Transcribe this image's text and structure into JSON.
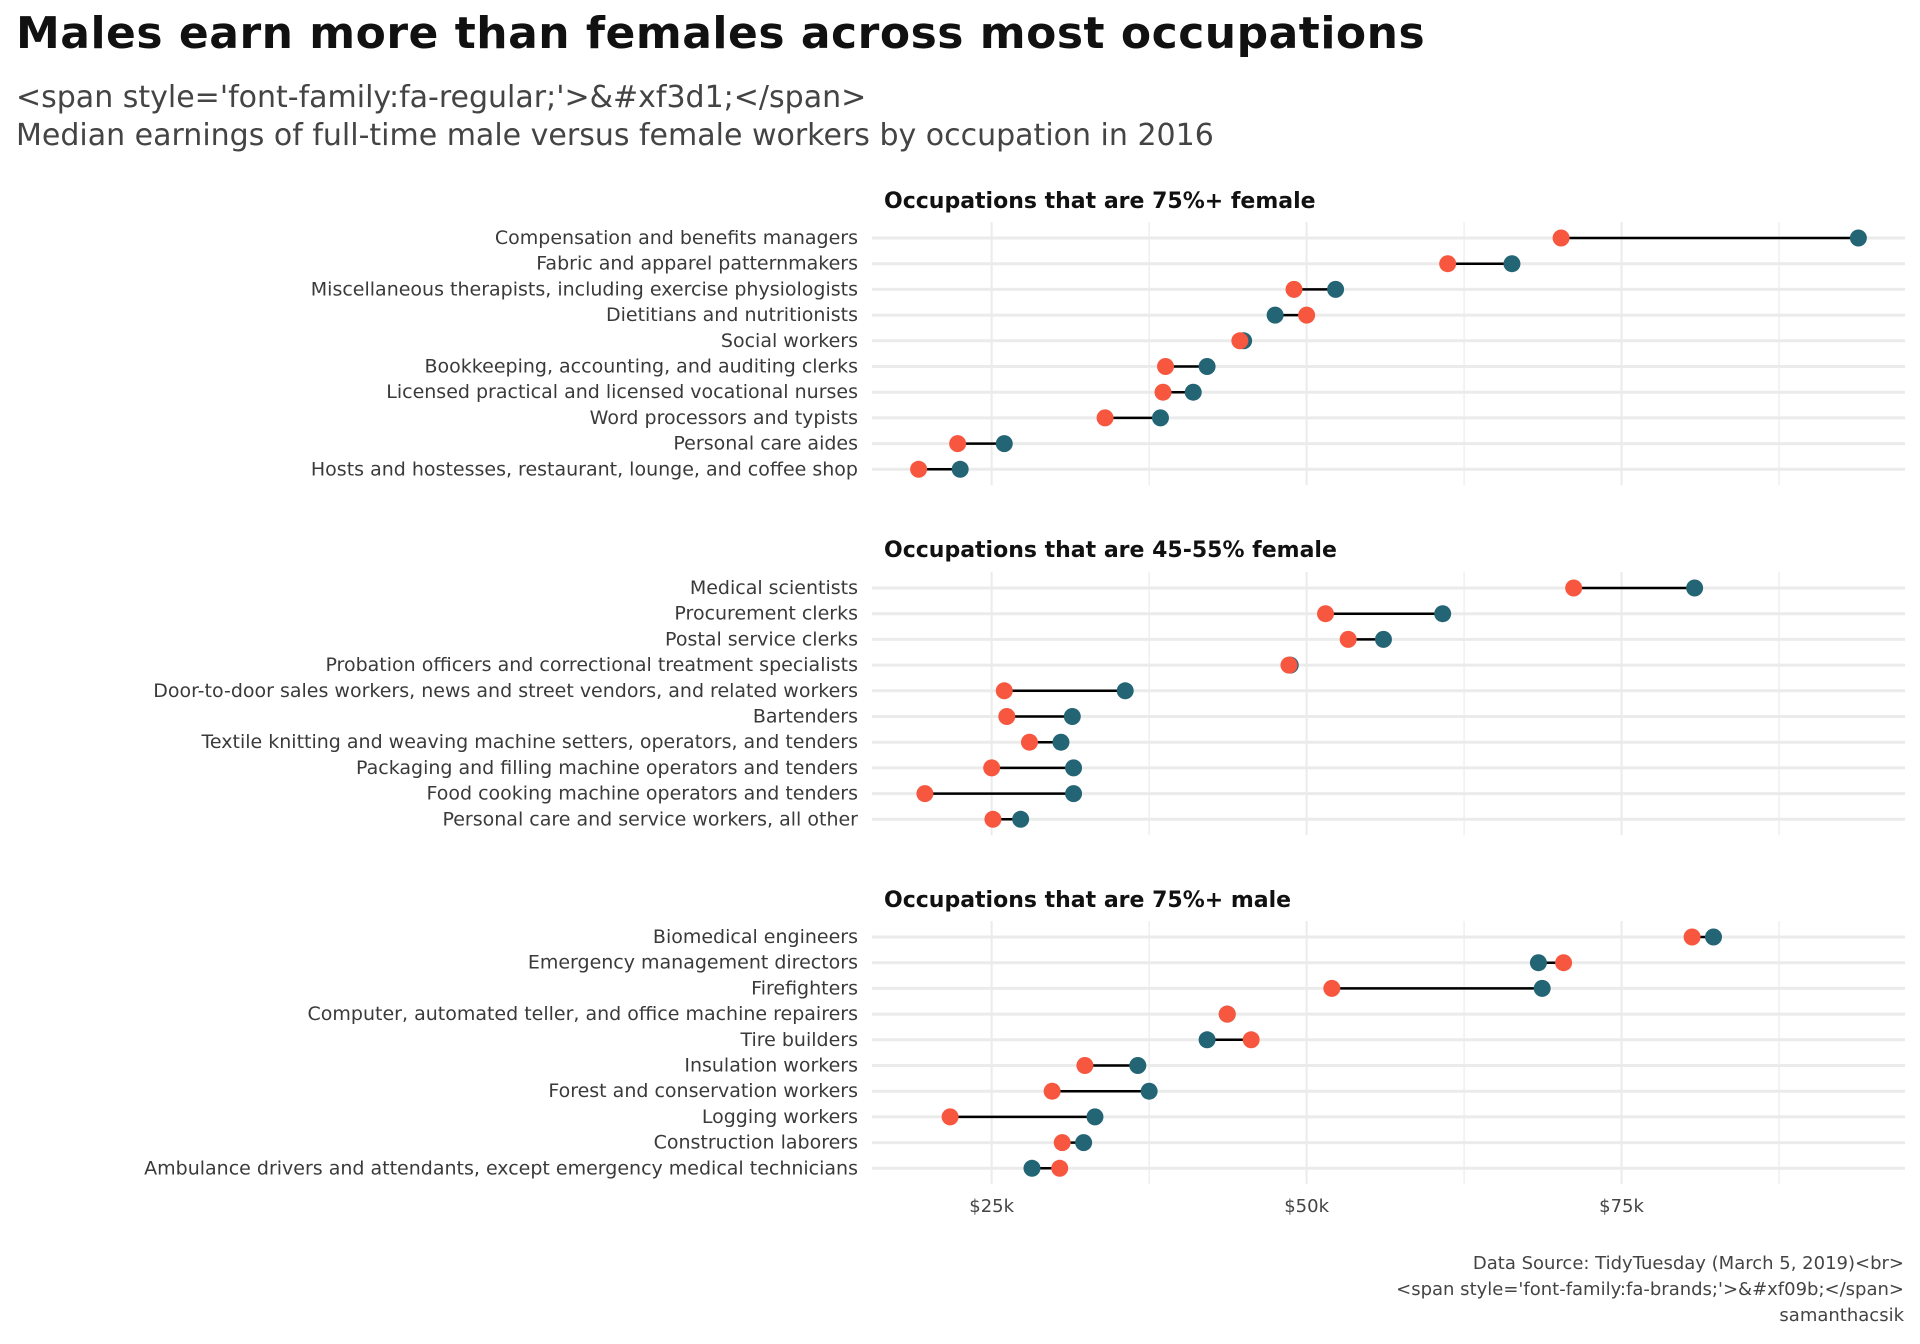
{
  "title": "Males earn more than females across most occupations",
  "subtitle_line1": "<span style='font-family:fa-regular;'>&#xf3d1;</span>",
  "subtitle_line2": "Median earnings of full-time male versus female workers by occupation in 2016",
  "caption": {
    "line1": "Data Source: TidyTuesday (March 5, 2019)<br>",
    "line2": "<span style='font-family:fa-brands;'>&#xf09b;</span>",
    "line3": "samanthacsik"
  },
  "colors": {
    "female": "#F8573F",
    "male": "#246575",
    "segment": "#000000",
    "grid": "#EBEBEB"
  },
  "chart_data": {
    "type": "dumbbell",
    "title": "Males earn more than females across most occupations",
    "xlabel": "",
    "ylabel": "",
    "x_ticks": [
      {
        "value": 25000,
        "label": "$25k"
      },
      {
        "value": 50000,
        "label": "$50k"
      },
      {
        "value": 75000,
        "label": "$75k"
      }
    ],
    "x_minor_ticks": [
      37500,
      62500,
      87500
    ],
    "xlim": [
      15500,
      97500
    ],
    "grid": true,
    "legend": "none",
    "series_names": [
      "female",
      "male"
    ],
    "facets": [
      {
        "title": "Occupations that are 75%+ female",
        "rows": [
          {
            "occupation": "Compensation and benefits managers",
            "female": 70200,
            "male": 93800
          },
          {
            "occupation": "Fabric and apparel patternmakers",
            "female": 61200,
            "male": 66300
          },
          {
            "occupation": "Miscellaneous therapists, including exercise physiologists",
            "female": 49000,
            "male": 52300
          },
          {
            "occupation": "Dietitians and nutritionists",
            "female": 50000,
            "male": 47500
          },
          {
            "occupation": "Social workers",
            "female": 44700,
            "male": 45000
          },
          {
            "occupation": "Bookkeeping, accounting, and auditing clerks",
            "female": 38800,
            "male": 42100
          },
          {
            "occupation": "Licensed practical and licensed vocational nurses",
            "female": 38600,
            "male": 41000
          },
          {
            "occupation": "Word processors and typists",
            "female": 34000,
            "male": 38400
          },
          {
            "occupation": "Personal care aides",
            "female": 22300,
            "male": 26000
          },
          {
            "occupation": "Hosts and hostesses, restaurant, lounge, and coffee shop",
            "female": 19200,
            "male": 22500
          }
        ]
      },
      {
        "title": "Occupations that are 45-55% female",
        "rows": [
          {
            "occupation": "Medical scientists",
            "female": 71200,
            "male": 80800
          },
          {
            "occupation": "Procurement clerks",
            "female": 51500,
            "male": 60800
          },
          {
            "occupation": "Postal service clerks",
            "female": 53300,
            "male": 56100
          },
          {
            "occupation": "Probation officers and correctional treatment specialists",
            "female": 48600,
            "male": 48700
          },
          {
            "occupation": "Door-to-door sales workers, news and street vendors, and related workers",
            "female": 26000,
            "male": 35600
          },
          {
            "occupation": "Bartenders",
            "female": 26200,
            "male": 31400
          },
          {
            "occupation": "Textile knitting and weaving machine setters, operators, and tenders",
            "female": 28000,
            "male": 30500
          },
          {
            "occupation": "Packaging and filling machine operators and tenders",
            "female": 25000,
            "male": 31500
          },
          {
            "occupation": "Food cooking machine operators and tenders",
            "female": 19700,
            "male": 31500
          },
          {
            "occupation": "Personal care and service workers, all other",
            "female": 25100,
            "male": 27300
          }
        ]
      },
      {
        "title": "Occupations that are 75%+ male",
        "rows": [
          {
            "occupation": "Biomedical engineers",
            "female": 80600,
            "male": 82300
          },
          {
            "occupation": "Emergency management directors",
            "female": 70400,
            "male": 68400
          },
          {
            "occupation": "Firefighters",
            "female": 52000,
            "male": 68700
          },
          {
            "occupation": "Computer, automated teller, and office machine repairers",
            "female": 43700,
            "male": 43700
          },
          {
            "occupation": "Tire builders",
            "female": 45600,
            "male": 42100
          },
          {
            "occupation": "Insulation workers",
            "female": 32400,
            "male": 36600
          },
          {
            "occupation": "Forest and conservation workers",
            "female": 29800,
            "male": 37500
          },
          {
            "occupation": "Logging workers",
            "female": 21700,
            "male": 33200
          },
          {
            "occupation": "Construction laborers",
            "female": 30600,
            "male": 32300
          },
          {
            "occupation": "Ambulance drivers and attendants, except emergency medical technicians",
            "female": 30400,
            "male": 28200
          }
        ]
      }
    ]
  }
}
